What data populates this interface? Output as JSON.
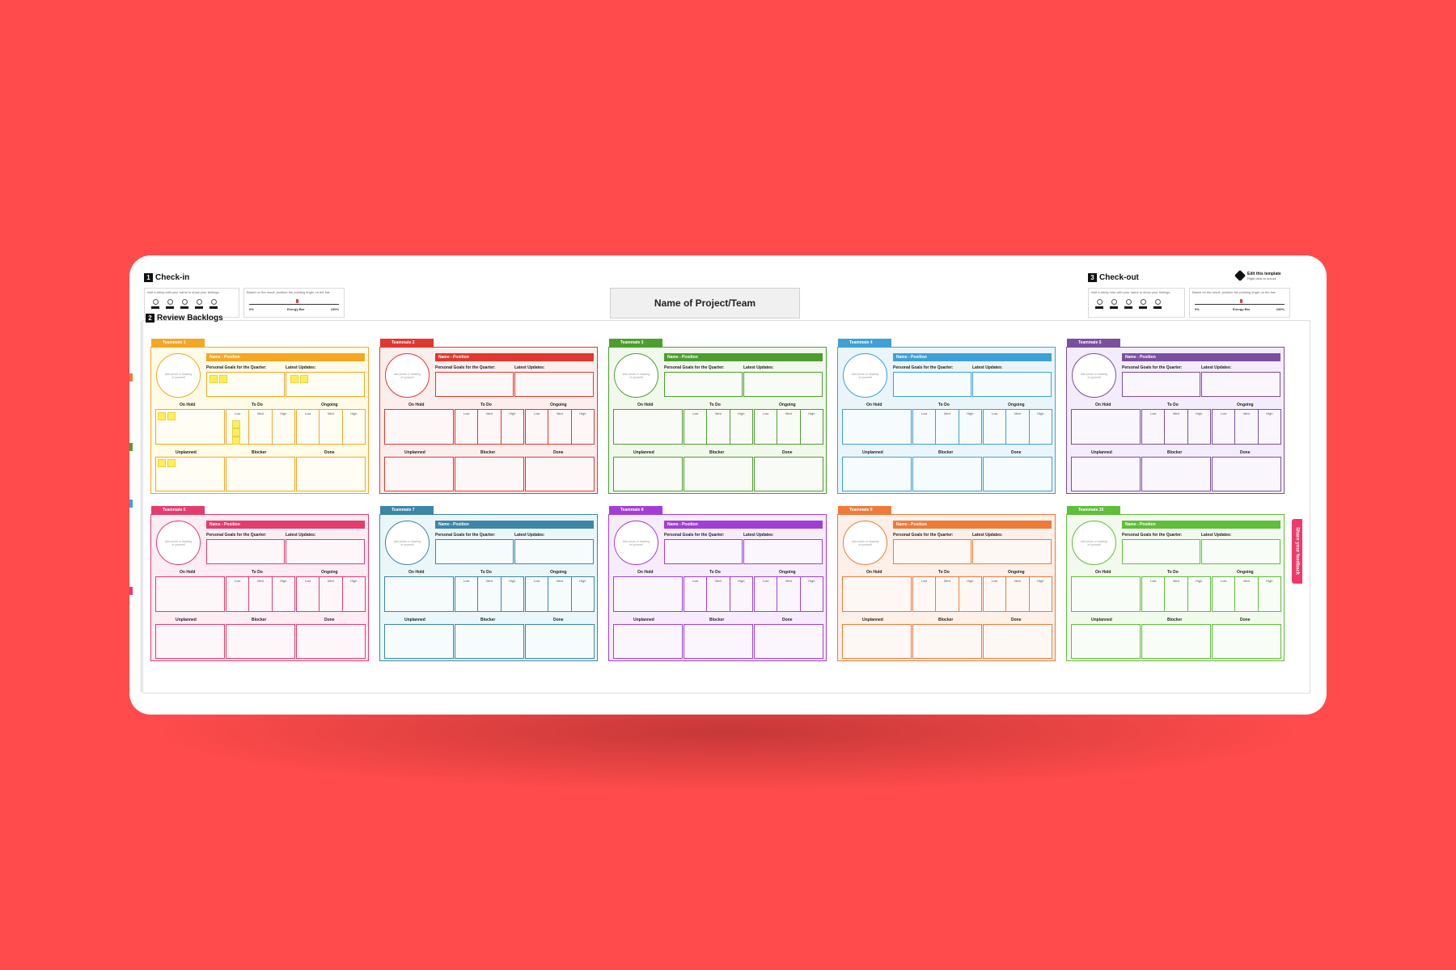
{
  "checkin": {
    "number": "1",
    "title": "Check-in",
    "hint_mood": "Add a sticky with your name to show your feelings.",
    "hint_energy": "Based on the result, position the pointing finger on the bar.",
    "energy_min": "0%",
    "energy_label": "Energy Bar",
    "energy_max": "100%"
  },
  "checkout": {
    "number": "3",
    "title": "Check-out",
    "hint_mood": "Add a sticky note with your name to show your feelings.",
    "hint_energy": "Based on the result, position the pointing finger on the bar.",
    "energy_min": "0%",
    "energy_label": "Energy Bar",
    "energy_max": "100%"
  },
  "review": {
    "number": "2",
    "title": "Review Backlogs"
  },
  "project_name": "Name of Project/Team",
  "edit_template": {
    "title": "Edit this template",
    "subtitle": "Right-click to unlock"
  },
  "feedback_tab": "Share your feedback",
  "labels": {
    "name_position": "Name - Position",
    "avatar_hint": "Add photo or drawing of yourself",
    "goals": "Personal Goals for the Quarter:",
    "updates": "Latest Updates:",
    "on_hold": "On Hold",
    "to_do": "To Do",
    "ongoing": "Ongoing",
    "low": "Low",
    "med": "Med",
    "high": "High",
    "unplanned": "Unplanned",
    "blocker": "Blocker",
    "done": "Done"
  },
  "teammates": [
    {
      "label": "Teammate 1",
      "color": "#f5a623",
      "bg": "#fffbe6"
    },
    {
      "label": "Teammate 2",
      "color": "#e0382f",
      "bg": "#fdeeee"
    },
    {
      "label": "Teammate 3",
      "color": "#4c9e2f",
      "bg": "#f1f8ec"
    },
    {
      "label": "Teammate 4",
      "color": "#3ea0d6",
      "bg": "#eaf5fb"
    },
    {
      "label": "Teammate 5",
      "color": "#7b4fa0",
      "bg": "#f3ecfa"
    },
    {
      "label": "Teammate 6",
      "color": "#e63b6d",
      "bg": "#fcedf3"
    },
    {
      "label": "Teammate 7",
      "color": "#3c86a8",
      "bg": "#ebf6f8"
    },
    {
      "label": "Teammate 8",
      "color": "#a23ed6",
      "bg": "#f6ecfb"
    },
    {
      "label": "Teammate 9",
      "color": "#f07a3a",
      "bg": "#fdf0e8"
    },
    {
      "label": "Teammate 10",
      "color": "#5fbe3a",
      "bg": "#f2faee"
    }
  ]
}
